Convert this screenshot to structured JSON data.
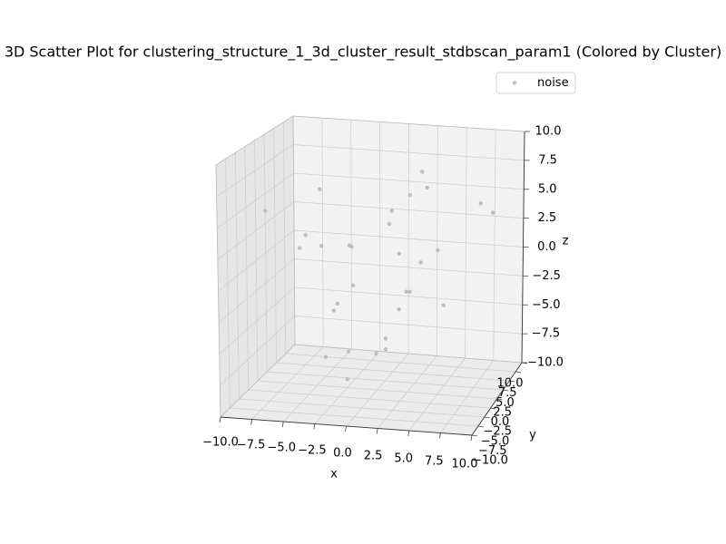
{
  "chart_data": {
    "type": "scatter",
    "title": "3D Scatter Plot for clustering_structure_1_3d_cluster_result_stdbscan_param1 (Colored by Cluster)",
    "xlabel": "x",
    "ylabel": "y",
    "zlabel": "z",
    "xlim": [
      -10,
      10
    ],
    "ylim": [
      -10,
      10
    ],
    "zlim": [
      -10,
      10
    ],
    "xticks": [
      {
        "value": -10,
        "label": "−10.0"
      },
      {
        "value": -7.5,
        "label": "−7.5"
      },
      {
        "value": -5,
        "label": "−5.0"
      },
      {
        "value": -2.5,
        "label": "−2.5"
      },
      {
        "value": 0,
        "label": "0.0"
      },
      {
        "value": 2.5,
        "label": "2.5"
      },
      {
        "value": 5,
        "label": "5.0"
      },
      {
        "value": 7.5,
        "label": "7.5"
      },
      {
        "value": 10,
        "label": "10.0"
      }
    ],
    "yticks": [
      {
        "value": -10,
        "label": "−10.0"
      },
      {
        "value": -7.5,
        "label": "−7.5"
      },
      {
        "value": -5,
        "label": "−5.0"
      },
      {
        "value": -2.5,
        "label": "−2.5"
      },
      {
        "value": 0,
        "label": "0.0"
      },
      {
        "value": 2.5,
        "label": "2.5"
      },
      {
        "value": 5,
        "label": "5.0"
      },
      {
        "value": 7.5,
        "label": "7.5"
      },
      {
        "value": 10,
        "label": "10.0"
      }
    ],
    "zticks": [
      {
        "value": -10,
        "label": "−10.0"
      },
      {
        "value": -7.5,
        "label": "−7.5"
      },
      {
        "value": -5,
        "label": "−5.0"
      },
      {
        "value": -2.5,
        "label": "−2.5"
      },
      {
        "value": 0,
        "label": "0.0"
      },
      {
        "value": 2.5,
        "label": "2.5"
      },
      {
        "value": 5,
        "label": "5.0"
      },
      {
        "value": 7.5,
        "label": "7.5"
      },
      {
        "value": 10,
        "label": "10.0"
      }
    ],
    "grid": true,
    "legend": "upper right",
    "series": [
      {
        "name": "noise",
        "color": "#bdbdbd",
        "x": [
          -9.2,
          -4.7,
          -5.9,
          -6.4,
          -4.6,
          -2.3,
          -2.1,
          1.2,
          1.0,
          2.7,
          3.7,
          4.1,
          8.5,
          9.5,
          1.8,
          3.6,
          5.0,
          -2.0,
          2.4,
          2.7,
          -3.3,
          -3.6,
          1.8,
          5.5,
          0.7,
          0.7,
          -2.4,
          -0.1,
          -4.3,
          -2.5
        ],
        "y": [
          0,
          0,
          0,
          0,
          0,
          0,
          0,
          0,
          0,
          0,
          0,
          0,
          0,
          0,
          0,
          0,
          0,
          0,
          0,
          0,
          0,
          0,
          0,
          0,
          0,
          0,
          0,
          0,
          0,
          0
        ],
        "z": [
          4.2,
          6.3,
          2.4,
          1.3,
          1.6,
          1.8,
          1.7,
          4.9,
          3.8,
          6.3,
          8.3,
          7.0,
          6.0,
          5.3,
          1.4,
          0.8,
          1.9,
          -1.5,
          -1.7,
          -1.7,
          -3.1,
          -3.7,
          -3.2,
          -2.6,
          -5.7,
          -6.6,
          -7.0,
          -7.0,
          -7.6,
          -9.3
        ]
      }
    ]
  }
}
